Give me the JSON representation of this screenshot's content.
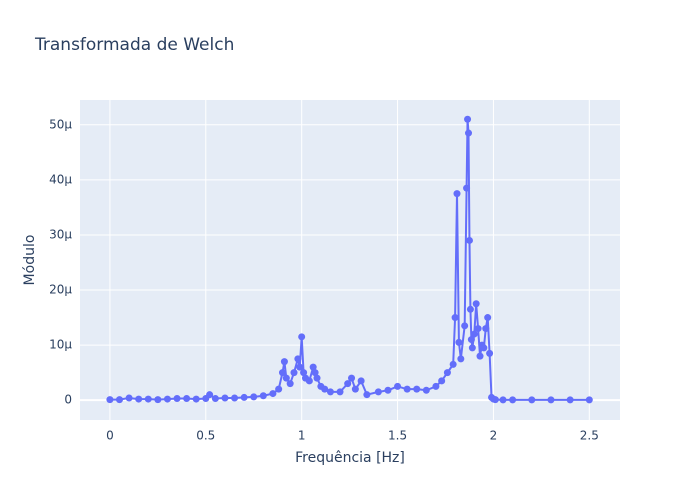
{
  "chart_data": {
    "type": "line",
    "title": "Transformada de Welch",
    "x_label": "Frequência [Hz]",
    "y_label": "Módulo",
    "xlim": [
      -0.156,
      2.66
    ],
    "ylim": [
      -3.6e-06,
      5.45e-05
    ],
    "xticks": [
      0,
      0.5,
      1,
      1.5,
      2,
      2.5
    ],
    "yticks": [
      0,
      {
        "value": 1e-05,
        "label": "10μ"
      },
      {
        "value": 2e-05,
        "label": "20μ"
      },
      {
        "value": 3e-05,
        "label": "30μ"
      },
      {
        "value": 4e-05,
        "label": "40μ"
      },
      {
        "value": 5e-05,
        "label": "50μ"
      }
    ],
    "grid": true,
    "series": [
      {
        "color": "#636efa",
        "x": [
          0,
          0.05,
          0.1,
          0.15,
          0.2,
          0.25,
          0.3,
          0.35,
          0.4,
          0.45,
          0.5,
          0.52,
          0.55,
          0.6,
          0.65,
          0.7,
          0.75,
          0.8,
          0.85,
          0.88,
          0.9,
          0.91,
          0.92,
          0.94,
          0.96,
          0.98,
          0.99,
          1.0,
          1.01,
          1.02,
          1.04,
          1.06,
          1.07,
          1.08,
          1.1,
          1.12,
          1.15,
          1.2,
          1.24,
          1.26,
          1.28,
          1.31,
          1.34,
          1.4,
          1.45,
          1.5,
          1.55,
          1.6,
          1.65,
          1.7,
          1.73,
          1.76,
          1.79,
          1.8,
          1.81,
          1.82,
          1.83,
          1.85,
          1.86,
          1.865,
          1.87,
          1.875,
          1.88,
          1.885,
          1.89,
          1.9,
          1.91,
          1.92,
          1.93,
          1.94,
          1.95,
          1.96,
          1.97,
          1.98,
          1.99,
          2.0,
          2.01,
          2.05,
          2.1,
          2.2,
          2.3,
          2.4,
          2.5
        ],
        "values": [
          1e-07,
          1e-07,
          4e-07,
          2e-07,
          2e-07,
          1e-07,
          2e-07,
          3e-07,
          3e-07,
          2e-07,
          3e-07,
          1e-06,
          3e-07,
          4e-07,
          4e-07,
          5e-07,
          6e-07,
          8e-07,
          1.2e-06,
          2e-06,
          5e-06,
          7e-06,
          4e-06,
          3e-06,
          5e-06,
          7.5e-06,
          6e-06,
          1.15e-05,
          5e-06,
          4e-06,
          3.5e-06,
          6e-06,
          5e-06,
          4e-06,
          2.5e-06,
          2e-06,
          1.5e-06,
          1.5e-06,
          3e-06,
          4e-06,
          2e-06,
          3.5e-06,
          1e-06,
          1.5e-06,
          1.8e-06,
          2.5e-06,
          2e-06,
          2e-06,
          1.8e-06,
          2.5e-06,
          3.5e-06,
          5e-06,
          6.5e-06,
          1.5e-05,
          3.75e-05,
          1.05e-05,
          7.5e-06,
          1.35e-05,
          3.85e-05,
          5.1e-05,
          4.85e-05,
          2.9e-05,
          1.65e-05,
          1.1e-05,
          9.5e-06,
          1.2e-05,
          1.75e-05,
          1.3e-05,
          8e-06,
          1e-05,
          9.5e-06,
          1.3e-05,
          1.5e-05,
          8.5e-06,
          5e-07,
          2e-07,
          1e-07,
          5e-08,
          5e-08,
          5e-08,
          5e-08,
          5e-08,
          5e-08
        ]
      }
    ]
  }
}
